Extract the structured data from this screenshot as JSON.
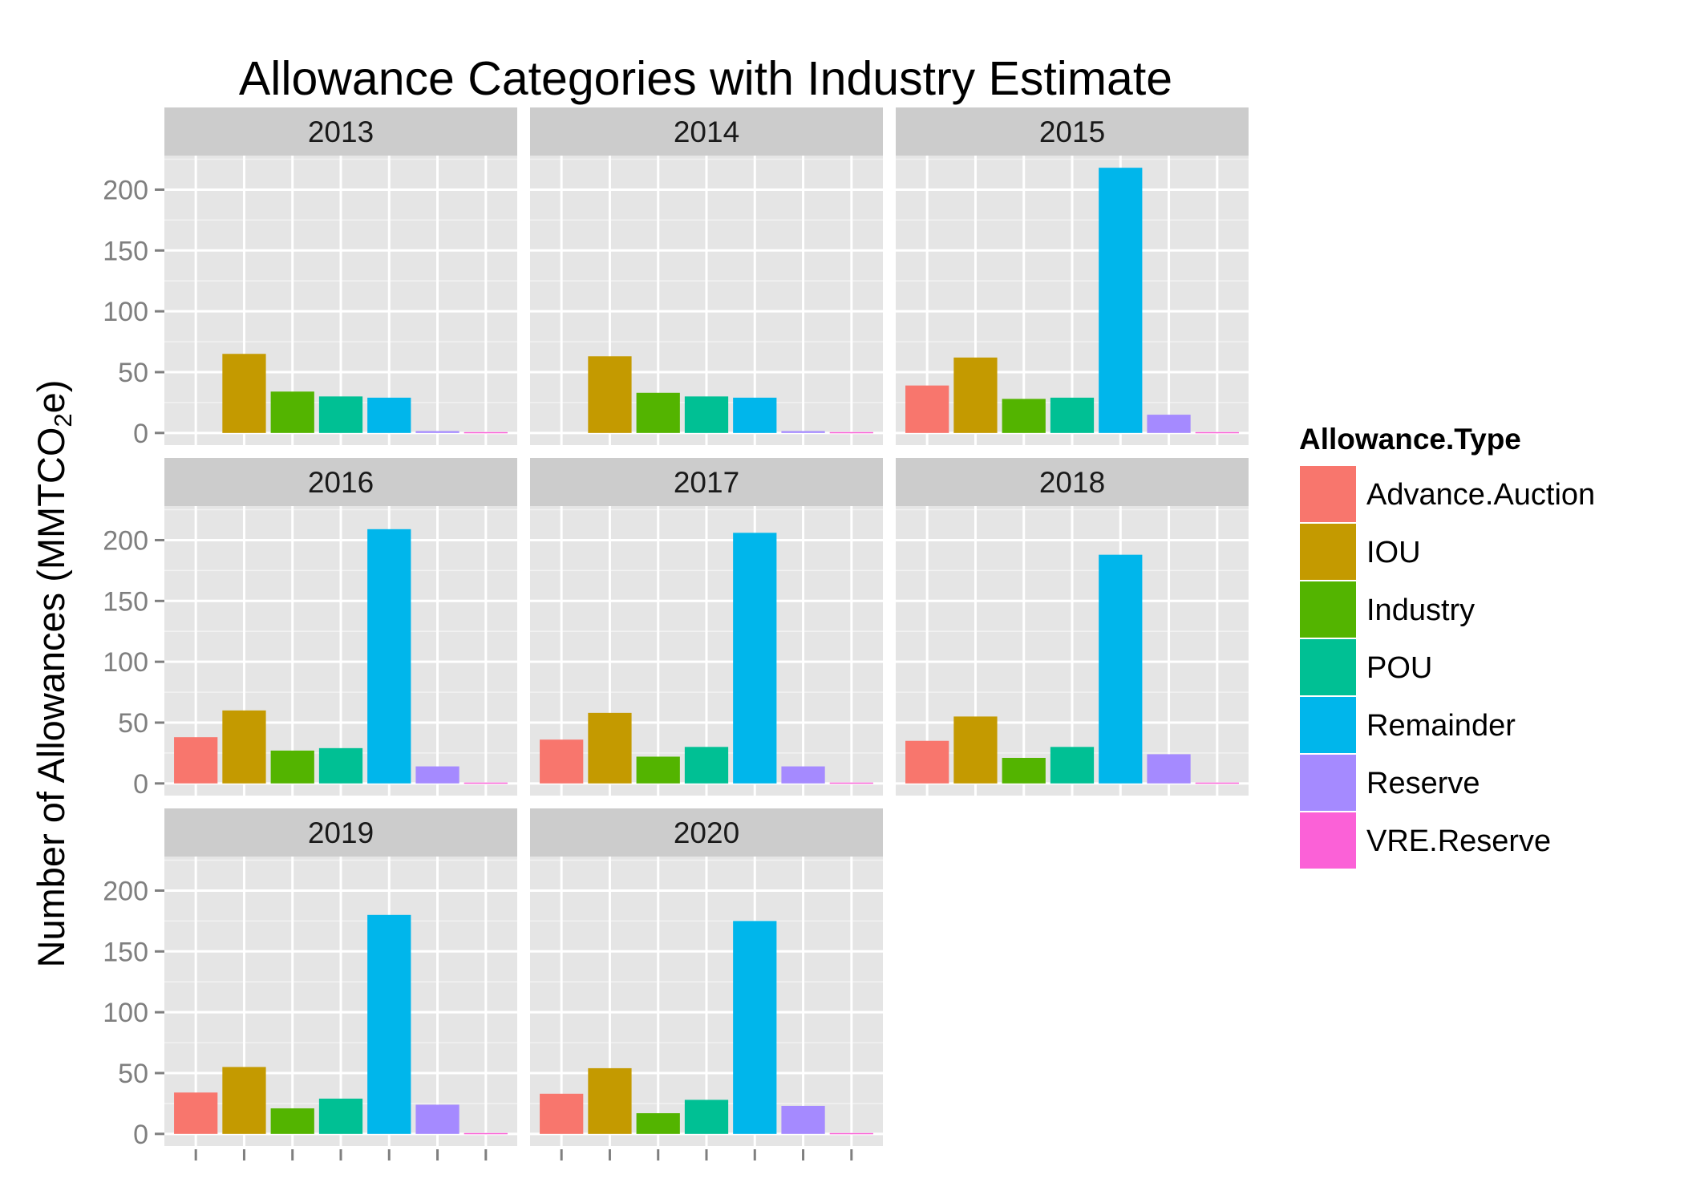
{
  "chart_data": {
    "type": "bar",
    "title": "Allowance Categories with Industry Estimate",
    "ylabel_main": "Number of Allowances (MMTCO",
    "ylabel_sub": "2",
    "ylabel_tail": "e)",
    "xlabel": "",
    "ylim": [
      -10,
      228
    ],
    "y_ticks": [
      0,
      50,
      100,
      150,
      200
    ],
    "y_tick_labels": [
      "0",
      "50",
      "100",
      "150",
      "200"
    ],
    "grid": true,
    "categories": [
      "Advance.Auction",
      "IOU",
      "Industry",
      "POU",
      "Remainder",
      "Reserve",
      "VRE.Reserve"
    ],
    "legend": {
      "title": "Allowance.Type",
      "placement": "right",
      "labels": [
        "Advance.Auction",
        "IOU",
        "Industry",
        "POU",
        "Remainder",
        "Reserve",
        "VRE.Reserve"
      ]
    },
    "colors": [
      "#F8766D",
      "#C49A00",
      "#53B400",
      "#00C094",
      "#00B6EB",
      "#A58AFF",
      "#FB61D7"
    ],
    "facets": [
      {
        "label": "2013",
        "values": [
          0,
          65,
          34,
          30,
          29,
          1.5,
          0.7
        ]
      },
      {
        "label": "2014",
        "values": [
          0,
          63,
          33,
          30,
          29,
          1.5,
          0.7
        ]
      },
      {
        "label": "2015",
        "values": [
          39,
          62,
          28,
          29,
          218,
          15,
          0.7
        ]
      },
      {
        "label": "2016",
        "values": [
          38,
          60,
          27,
          29,
          209,
          14,
          0.7
        ]
      },
      {
        "label": "2017",
        "values": [
          36,
          58,
          22,
          30,
          206,
          14,
          0.7
        ]
      },
      {
        "label": "2018",
        "values": [
          35,
          55,
          21,
          30,
          188,
          24,
          0.7
        ]
      },
      {
        "label": "2019",
        "values": [
          34,
          55,
          21,
          29,
          180,
          24,
          0.7
        ]
      },
      {
        "label": "2020",
        "values": [
          33,
          54,
          17,
          28,
          175,
          23,
          0.7
        ]
      }
    ]
  }
}
